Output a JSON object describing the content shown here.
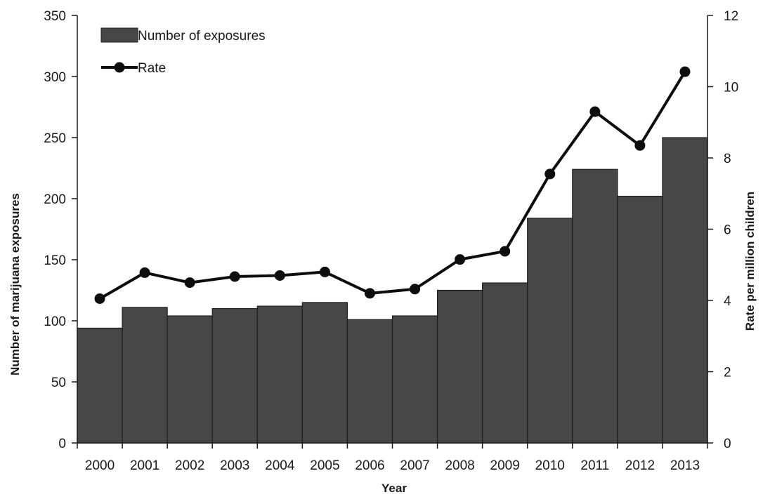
{
  "chart_data": {
    "type": "bar",
    "categories": [
      "2000",
      "2001",
      "2002",
      "2003",
      "2004",
      "2005",
      "2006",
      "2007",
      "2008",
      "2009",
      "2010",
      "2011",
      "2012",
      "2013"
    ],
    "series": [
      {
        "name": "Number of exposures",
        "type": "bar",
        "axis": "left",
        "values": [
          94,
          111,
          104,
          110,
          112,
          115,
          101,
          104,
          125,
          131,
          184,
          224,
          202,
          250
        ]
      },
      {
        "name": "Rate",
        "type": "line",
        "axis": "right",
        "values": [
          4.05,
          4.78,
          4.5,
          4.67,
          4.7,
          4.8,
          4.2,
          4.32,
          5.15,
          5.38,
          7.55,
          9.3,
          8.35,
          10.42
        ]
      }
    ],
    "xlabel": "Year",
    "ylabel": "Number of marijuana exposures",
    "y2label": "Rate per million children",
    "ylim": [
      0,
      350
    ],
    "y2lim": [
      0,
      12
    ],
    "yticks": [
      "0",
      "50",
      "100",
      "150",
      "200",
      "250",
      "300",
      "350"
    ],
    "y2ticks": [
      "0",
      "2",
      "4",
      "6",
      "8",
      "10",
      "12"
    ],
    "legend_position": "top-left",
    "grid": false,
    "colors": {
      "bar": "#474747",
      "bar_edge": "#1e1e1e",
      "line": "#0d0d0d",
      "axis": "#1a1a1a"
    }
  }
}
